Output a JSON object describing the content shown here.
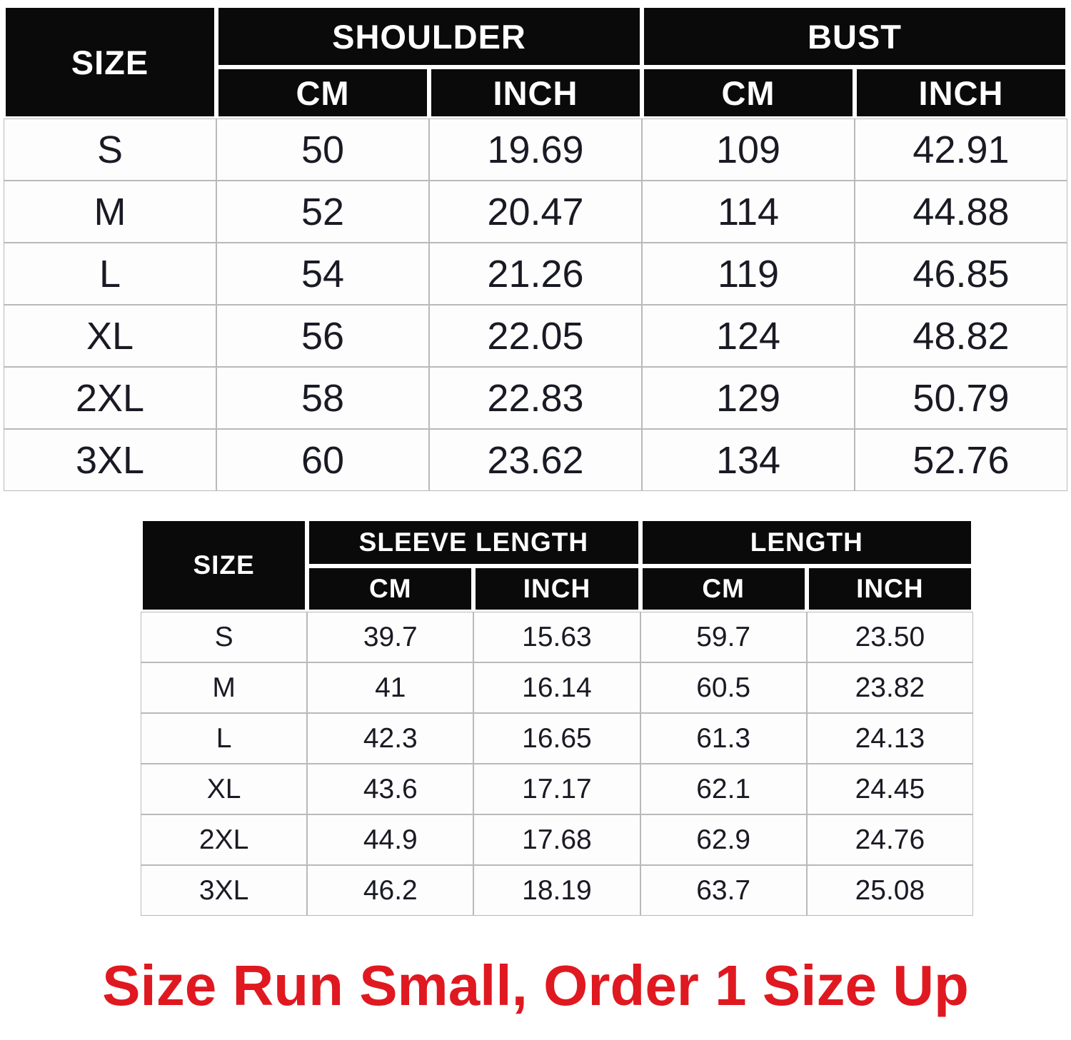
{
  "colors": {
    "header_bg": "#0a0a0a",
    "header_text": "#ffffff",
    "body_text": "#1a1a24",
    "grid_line": "#b9b9b9",
    "note_red": "#e01820"
  },
  "chart_data": [
    {
      "type": "table",
      "name": "shoulder-bust-size-chart",
      "corner_label": "SIZE",
      "column_groups": [
        {
          "label": "SHOULDER",
          "subcolumns": [
            "CM",
            "INCH"
          ]
        },
        {
          "label": "BUST",
          "subcolumns": [
            "CM",
            "INCH"
          ]
        }
      ],
      "rows": [
        {
          "size": "S",
          "values": [
            "50",
            "19.69",
            "109",
            "42.91"
          ]
        },
        {
          "size": "M",
          "values": [
            "52",
            "20.47",
            "114",
            "44.88"
          ]
        },
        {
          "size": "L",
          "values": [
            "54",
            "21.26",
            "119",
            "46.85"
          ]
        },
        {
          "size": "XL",
          "values": [
            "56",
            "22.05",
            "124",
            "48.82"
          ]
        },
        {
          "size": "2XL",
          "values": [
            "58",
            "22.83",
            "129",
            "50.79"
          ]
        },
        {
          "size": "3XL",
          "values": [
            "60",
            "23.62",
            "134",
            "52.76"
          ]
        }
      ]
    },
    {
      "type": "table",
      "name": "sleeve-length-size-chart",
      "corner_label": "SIZE",
      "column_groups": [
        {
          "label": "SLEEVE LENGTH",
          "subcolumns": [
            "CM",
            "INCH"
          ]
        },
        {
          "label": "LENGTH",
          "subcolumns": [
            "CM",
            "INCH"
          ]
        }
      ],
      "rows": [
        {
          "size": "S",
          "values": [
            "39.7",
            "15.63",
            "59.7",
            "23.50"
          ]
        },
        {
          "size": "M",
          "values": [
            "41",
            "16.14",
            "60.5",
            "23.82"
          ]
        },
        {
          "size": "L",
          "values": [
            "42.3",
            "16.65",
            "61.3",
            "24.13"
          ]
        },
        {
          "size": "XL",
          "values": [
            "43.6",
            "17.17",
            "62.1",
            "24.45"
          ]
        },
        {
          "size": "2XL",
          "values": [
            "44.9",
            "17.68",
            "62.9",
            "24.76"
          ]
        },
        {
          "size": "3XL",
          "values": [
            "46.2",
            "18.19",
            "63.7",
            "25.08"
          ]
        }
      ]
    }
  ],
  "note": {
    "text": "Size Run Small, Order 1 Size Up"
  }
}
